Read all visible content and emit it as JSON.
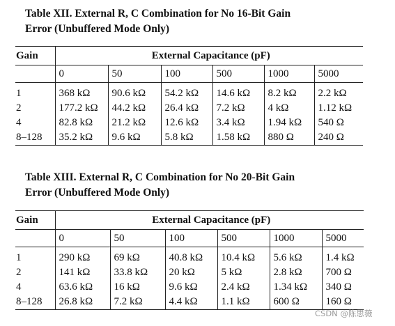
{
  "tables": [
    {
      "title_line1": "Table XII.  External R, C Combination for No 16-Bit Gain",
      "title_line2": "Error (Unbuffered Mode Only)",
      "gain_header": "Gain",
      "cap_header": "External Capacitance (pF)",
      "cap_values": [
        "0",
        "50",
        "100",
        "500",
        "1000",
        "5000"
      ],
      "rows": [
        {
          "gain": "1",
          "cells": [
            "368 kΩ",
            "90.6 kΩ",
            "54.2 kΩ",
            "14.6 kΩ",
            "8.2 kΩ",
            "2.2 kΩ"
          ]
        },
        {
          "gain": "2",
          "cells": [
            "177.2 kΩ",
            "44.2 kΩ",
            "26.4 kΩ",
            "7.2 kΩ",
            "4 kΩ",
            "1.12 kΩ"
          ]
        },
        {
          "gain": "4",
          "cells": [
            "82.8 kΩ",
            "21.2 kΩ",
            "12.6 kΩ",
            "3.4 kΩ",
            "1.94 kΩ",
            "540 Ω"
          ]
        },
        {
          "gain": "8–128",
          "cells": [
            "35.2 kΩ",
            "9.6 kΩ",
            "5.8 kΩ",
            "1.58 kΩ",
            "880 Ω",
            "240 Ω"
          ]
        }
      ]
    },
    {
      "title_line1": "Table XIII.  External R, C Combination for No 20-Bit Gain",
      "title_line2": "Error (Unbuffered Mode Only)",
      "gain_header": "Gain",
      "cap_header": "External Capacitance (pF)",
      "cap_values": [
        "0",
        "50",
        "100",
        "500",
        "1000",
        "5000"
      ],
      "rows": [
        {
          "gain": "1",
          "cells": [
            "290 kΩ",
            "69 kΩ",
            "40.8 kΩ",
            "10.4 kΩ",
            "5.6 kΩ",
            "1.4 kΩ"
          ]
        },
        {
          "gain": "2",
          "cells": [
            "141 kΩ",
            "33.8 kΩ",
            "20 kΩ",
            "5 kΩ",
            "2.8 kΩ",
            "700 Ω"
          ]
        },
        {
          "gain": "4",
          "cells": [
            "63.6 kΩ",
            "16 kΩ",
            "9.6 kΩ",
            "2.4 kΩ",
            "1.34 kΩ",
            "340 Ω"
          ]
        },
        {
          "gain": "8–128",
          "cells": [
            "26.8 kΩ",
            "7.2 kΩ",
            "4.4 kΩ",
            "1.1 kΩ",
            "600 Ω",
            "160 Ω"
          ]
        }
      ]
    }
  ],
  "watermark": "CSDN @陈思薇"
}
